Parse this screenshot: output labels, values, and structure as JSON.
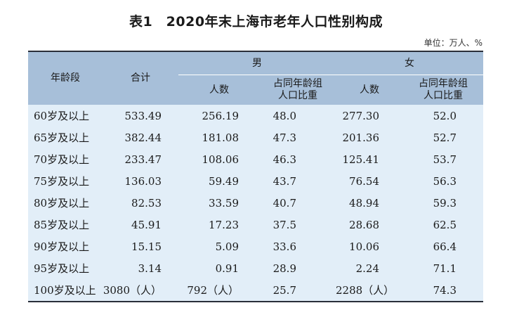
{
  "title": "表1　2020年末上海市老年人口性别构成",
  "unit": "单位：万人、%",
  "headers": {
    "age": "年龄段",
    "total": "合计",
    "male": "男",
    "female": "女",
    "count": "人数",
    "share_line1": "占同年龄组",
    "share_line2": "人口比重"
  },
  "rows": [
    {
      "age": "60岁及以上",
      "total": "533.49",
      "m_count": "256.19",
      "m_pct": "48.0",
      "f_count": "277.30",
      "f_pct": "52.0"
    },
    {
      "age": "65岁及以上",
      "total": "382.44",
      "m_count": "181.08",
      "m_pct": "47.3",
      "f_count": "201.36",
      "f_pct": "52.7"
    },
    {
      "age": "70岁及以上",
      "total": "233.47",
      "m_count": "108.06",
      "m_pct": "46.3",
      "f_count": "125.41",
      "f_pct": "53.7"
    },
    {
      "age": "75岁及以上",
      "total": "136.03",
      "m_count": "59.49",
      "m_pct": "43.7",
      "f_count": "76.54",
      "f_pct": "56.3"
    },
    {
      "age": "80岁及以上",
      "total": "82.53",
      "m_count": "33.59",
      "m_pct": "40.7",
      "f_count": "48.94",
      "f_pct": "59.3"
    },
    {
      "age": "85岁及以上",
      "total": "45.91",
      "m_count": "17.23",
      "m_pct": "37.5",
      "f_count": "28.68",
      "f_pct": "62.5"
    },
    {
      "age": "90岁及以上",
      "total": "15.15",
      "m_count": "5.09",
      "m_pct": "33.6",
      "f_count": "10.06",
      "f_pct": "66.4"
    },
    {
      "age": "95岁及以上",
      "total": "3.14",
      "m_count": "0.91",
      "m_pct": "28.9",
      "f_count": "2.24",
      "f_pct": "71.1"
    },
    {
      "age": "100岁及以上",
      "total": "3080（人）",
      "m_count": "792（人）",
      "m_pct": "25.7",
      "f_count": "2288（人）",
      "f_pct": "74.3"
    }
  ]
}
